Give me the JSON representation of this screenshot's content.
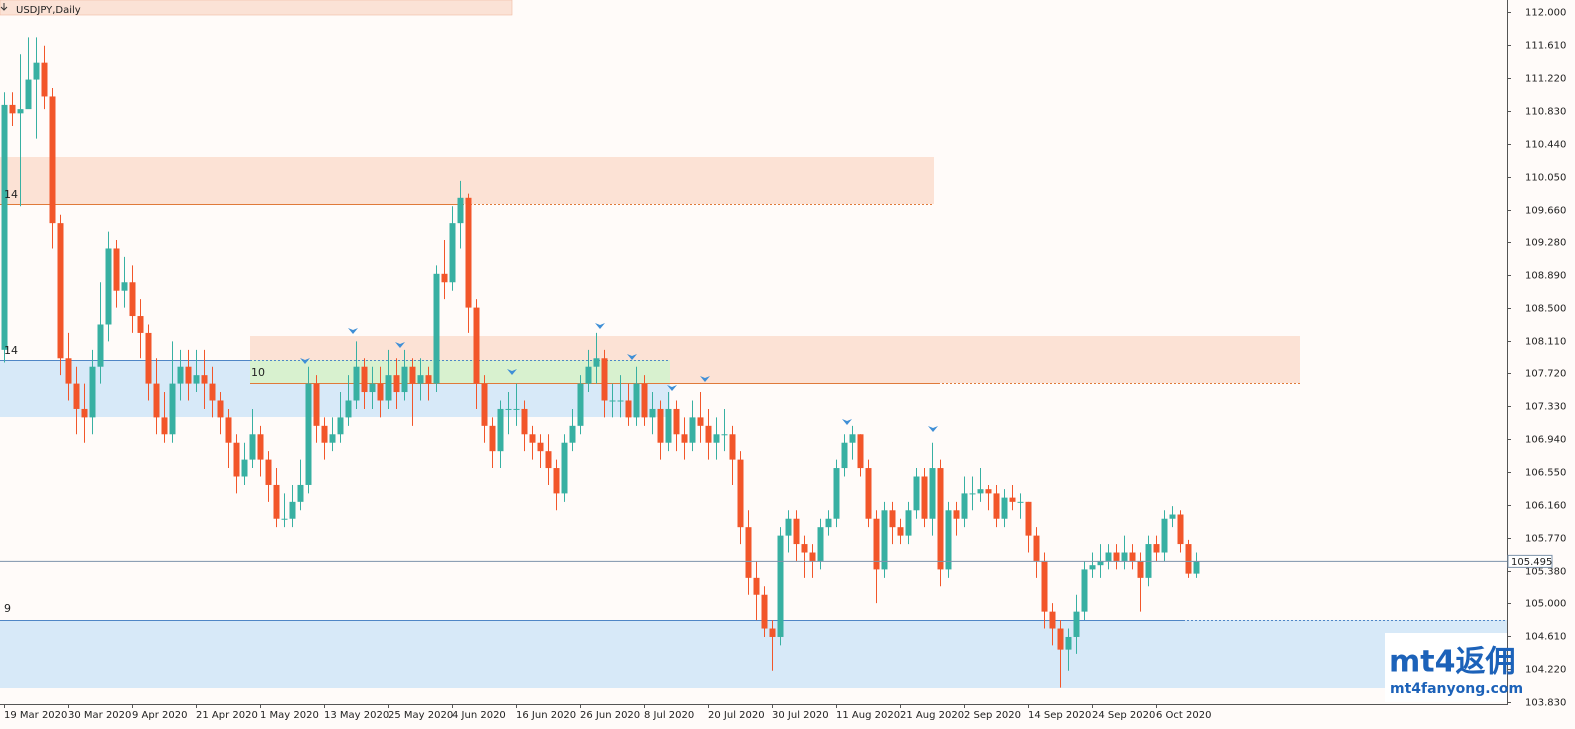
{
  "chart_data": {
    "type": "candlestick",
    "title": "USDJPY,Daily",
    "categories": [
      "19 Mar 2020",
      null,
      null,
      null,
      null,
      null,
      null,
      null,
      "30 Mar 2020",
      null,
      null,
      null,
      null,
      null,
      null,
      null,
      "9 Apr 2020",
      null,
      null,
      null,
      null,
      null,
      null,
      null,
      "21 Apr 2020",
      null,
      null,
      null,
      null,
      null,
      null,
      null,
      "1 May 2020",
      null,
      null,
      null,
      null,
      null,
      null,
      null,
      "13 May 2020",
      null,
      null,
      null,
      null,
      null,
      null,
      null,
      "25 May 2020",
      null,
      null,
      null,
      null,
      null,
      null,
      null,
      "4 Jun 2020",
      null,
      null,
      null,
      null,
      null,
      null,
      null,
      "16 Jun 2020",
      null,
      null,
      null,
      null,
      null,
      null,
      null,
      "26 Jun 2020",
      null,
      null,
      null,
      null,
      null,
      null,
      null,
      "8 Jul 2020",
      null,
      null,
      null,
      null,
      null,
      null,
      null,
      "20 Jul 2020",
      null,
      null,
      null,
      null,
      null,
      null,
      null,
      "30 Jul 2020",
      null,
      null,
      null,
      null,
      null,
      null,
      null,
      "11 Aug 2020",
      null,
      null,
      null,
      null,
      null,
      null,
      null,
      "21 Aug 2020",
      null,
      null,
      null,
      null,
      null,
      null,
      null,
      "2 Sep 2020",
      null,
      null,
      null,
      null,
      null,
      null,
      null,
      "14 Sep 2020",
      null,
      null,
      null,
      null,
      null,
      null,
      null,
      "24 Sep 2020",
      null,
      null,
      null,
      null,
      null,
      null,
      null,
      "6 Oct 2020",
      null,
      null,
      null,
      null,
      null
    ],
    "open": [
      108.0,
      110.9,
      110.8,
      110.85,
      111.2,
      111.4,
      111.0,
      109.5,
      107.9,
      107.6,
      107.3,
      107.2,
      107.8,
      108.3,
      109.2,
      108.7,
      108.8,
      108.4,
      108.2,
      107.6,
      107.2,
      107.0,
      107.6,
      107.8,
      107.6,
      107.7,
      107.6,
      107.4,
      107.2,
      106.9,
      106.5,
      106.7,
      107.0,
      106.7,
      106.4,
      106.0,
      106.0,
      106.2,
      106.4,
      107.6,
      107.1,
      106.9,
      107.0,
      107.2,
      107.4,
      107.8,
      107.5,
      107.6,
      107.4,
      107.7,
      107.5,
      107.8,
      107.6,
      107.7,
      107.6,
      108.9,
      108.8,
      109.5,
      109.8,
      108.5,
      107.6,
      107.1,
      106.8,
      107.3,
      107.3,
      107.3,
      107.0,
      106.9,
      106.8,
      106.6,
      106.3,
      106.9,
      107.1,
      107.6,
      107.8,
      107.9,
      107.4,
      107.4,
      107.4,
      107.2,
      107.6,
      107.2,
      107.3,
      106.9,
      107.3,
      107.0,
      106.9,
      107.2,
      107.1,
      106.9,
      107.0,
      107.0,
      106.7,
      105.9,
      105.3,
      105.1,
      104.7,
      104.6,
      105.8,
      106.0,
      105.7,
      105.6,
      105.5,
      105.9,
      106.0,
      106.6,
      106.9,
      107.0,
      106.6,
      106.0,
      105.4,
      106.1,
      105.9,
      105.8,
      106.1,
      106.5,
      106.0,
      106.6,
      105.4,
      106.1,
      106.0,
      106.3,
      106.3,
      106.35,
      106.3,
      106.0,
      106.25,
      106.2,
      106.2,
      105.8,
      105.5,
      104.9,
      104.7,
      104.45,
      104.6,
      104.9,
      105.4,
      105.45,
      105.5,
      105.6,
      105.5,
      105.6,
      105.5,
      105.3,
      105.7,
      105.6,
      106.0,
      106.05,
      105.7,
      105.35
    ],
    "high": [
      111.05,
      111.05,
      111.5,
      111.7,
      111.7,
      111.6,
      111.1,
      109.6,
      108.2,
      107.8,
      107.6,
      108.0,
      108.8,
      109.4,
      109.3,
      109.1,
      109.0,
      108.6,
      108.3,
      107.9,
      107.5,
      108.1,
      108.0,
      108.0,
      108.0,
      108.0,
      107.8,
      107.5,
      107.3,
      107.0,
      106.9,
      107.3,
      107.1,
      106.8,
      106.6,
      106.3,
      106.4,
      106.7,
      107.8,
      107.7,
      107.2,
      107.2,
      107.5,
      107.7,
      108.1,
      107.9,
      107.8,
      107.8,
      108.0,
      107.9,
      108.0,
      107.9,
      107.9,
      107.8,
      109.0,
      109.3,
      109.7,
      110.0,
      109.85,
      108.6,
      107.7,
      107.2,
      107.4,
      107.5,
      107.6,
      107.4,
      107.1,
      107.0,
      107.0,
      106.7,
      107.0,
      107.3,
      107.7,
      108.0,
      108.2,
      108.0,
      107.6,
      107.7,
      107.6,
      107.8,
      107.7,
      107.5,
      107.4,
      107.5,
      107.4,
      107.2,
      107.4,
      107.5,
      107.3,
      107.2,
      107.3,
      107.1,
      106.8,
      106.1,
      105.5,
      105.2,
      104.8,
      105.9,
      106.1,
      106.1,
      105.8,
      105.7,
      106.0,
      106.1,
      106.7,
      107.0,
      107.1,
      107.0,
      106.7,
      106.1,
      106.2,
      106.2,
      106.0,
      106.2,
      106.6,
      106.6,
      106.9,
      106.7,
      106.2,
      106.2,
      106.5,
      106.5,
      106.6,
      106.4,
      106.4,
      106.35,
      106.4,
      106.3,
      106.2,
      105.9,
      105.6,
      105.0,
      104.8,
      104.7,
      105.1,
      105.5,
      105.6,
      105.7,
      105.7,
      105.7,
      105.8,
      105.7,
      105.6,
      105.8,
      105.8,
      106.1,
      106.15,
      106.1,
      105.75,
      105.6
    ],
    "low": [
      107.85,
      110.65,
      109.7,
      110.9,
      110.5,
      110.85,
      109.2,
      107.7,
      107.4,
      107.0,
      106.9,
      107.0,
      107.6,
      108.1,
      108.5,
      108.5,
      108.2,
      107.9,
      107.4,
      107.0,
      106.9,
      106.9,
      107.4,
      107.4,
      107.5,
      107.3,
      107.2,
      107.0,
      106.6,
      106.3,
      106.4,
      106.6,
      106.5,
      106.2,
      105.9,
      105.9,
      105.9,
      106.1,
      106.3,
      106.9,
      106.7,
      106.8,
      106.9,
      107.1,
      107.3,
      107.3,
      107.3,
      107.2,
      107.3,
      107.3,
      107.4,
      107.1,
      107.4,
      107.4,
      107.5,
      108.6,
      108.7,
      109.2,
      108.2,
      107.3,
      106.9,
      106.6,
      106.6,
      107.0,
      107.1,
      106.8,
      106.7,
      106.6,
      106.4,
      106.1,
      106.2,
      106.8,
      107.0,
      107.5,
      107.6,
      107.2,
      107.2,
      107.2,
      107.1,
      107.1,
      107.1,
      107.0,
      106.7,
      106.8,
      106.8,
      106.7,
      106.8,
      106.9,
      106.7,
      106.7,
      106.8,
      106.4,
      105.7,
      105.1,
      104.8,
      104.6,
      104.2,
      104.5,
      105.6,
      105.5,
      105.3,
      105.3,
      105.4,
      105.8,
      105.9,
      106.5,
      106.7,
      106.5,
      105.9,
      105.0,
      105.3,
      105.7,
      105.7,
      105.7,
      106.0,
      105.9,
      105.8,
      105.2,
      105.3,
      105.8,
      105.9,
      106.1,
      106.2,
      106.1,
      105.9,
      105.9,
      106.1,
      106.0,
      105.6,
      105.3,
      104.7,
      104.5,
      104.0,
      104.2,
      104.4,
      104.8,
      105.3,
      105.3,
      105.4,
      105.4,
      105.4,
      105.4,
      104.9,
      105.2,
      105.5,
      105.5,
      105.9,
      105.6,
      105.3,
      105.3
    ],
    "close": [
      110.9,
      110.8,
      110.85,
      111.2,
      111.4,
      111.0,
      109.5,
      107.9,
      107.6,
      107.3,
      107.2,
      107.8,
      108.3,
      109.2,
      108.7,
      108.8,
      108.4,
      108.2,
      107.6,
      107.2,
      107.0,
      107.6,
      107.8,
      107.6,
      107.7,
      107.6,
      107.4,
      107.2,
      106.9,
      106.5,
      106.7,
      107.0,
      106.7,
      106.4,
      106.0,
      106.0,
      106.2,
      106.4,
      107.6,
      107.1,
      106.9,
      107.0,
      107.2,
      107.4,
      107.8,
      107.5,
      107.6,
      107.4,
      107.7,
      107.5,
      107.8,
      107.6,
      107.7,
      107.6,
      108.9,
      108.8,
      109.5,
      109.8,
      108.5,
      107.6,
      107.1,
      106.8,
      107.3,
      107.3,
      107.3,
      107.0,
      106.9,
      106.8,
      106.6,
      106.3,
      106.9,
      107.1,
      107.6,
      107.8,
      107.9,
      107.4,
      107.4,
      107.4,
      107.2,
      107.6,
      107.2,
      107.3,
      106.9,
      107.3,
      107.0,
      106.9,
      107.2,
      107.1,
      106.9,
      107.0,
      107.0,
      106.7,
      105.9,
      105.3,
      105.1,
      104.7,
      104.6,
      105.8,
      106.0,
      105.7,
      105.6,
      105.5,
      105.9,
      106.0,
      106.6,
      106.9,
      107.0,
      106.6,
      106.0,
      105.4,
      106.1,
      105.9,
      105.8,
      106.1,
      106.5,
      106.0,
      106.6,
      105.4,
      106.1,
      106.0,
      106.3,
      106.3,
      106.35,
      106.3,
      106.0,
      106.25,
      106.2,
      106.2,
      105.8,
      105.5,
      104.9,
      104.7,
      104.45,
      104.6,
      104.9,
      105.4,
      105.45,
      105.5,
      105.6,
      105.5,
      105.6,
      105.5,
      105.3,
      105.7,
      105.6,
      106.0,
      106.05,
      105.7,
      105.35,
      105.495
    ],
    "up_color": "#38b0a2",
    "down_color": "#f2562a",
    "current_price": 105.495,
    "ylim": [
      103.83,
      112.0
    ],
    "yticks": [
      {
        "value": 112.0,
        "label": "112.000"
      },
      {
        "value": 111.61,
        "label": "111.610"
      },
      {
        "value": 111.22,
        "label": "111.220"
      },
      {
        "value": 110.83,
        "label": "110.830"
      },
      {
        "value": 110.44,
        "label": "110.440"
      },
      {
        "value": 110.05,
        "label": "110.050"
      },
      {
        "value": 109.66,
        "label": "109.660"
      },
      {
        "value": 109.28,
        "label": "109.280"
      },
      {
        "value": 108.89,
        "label": "108.890"
      },
      {
        "value": 108.5,
        "label": "108.500"
      },
      {
        "value": 108.11,
        "label": "108.110"
      },
      {
        "value": 107.72,
        "label": "107.720"
      },
      {
        "value": 107.33,
        "label": "107.330"
      },
      {
        "value": 106.94,
        "label": "106.940"
      },
      {
        "value": 106.55,
        "label": "106.550"
      },
      {
        "value": 106.16,
        "label": "106.160"
      },
      {
        "value": 105.77,
        "label": "105.770"
      },
      {
        "value": 105.38,
        "label": "105.380"
      },
      {
        "value": 105.0,
        "label": "105.000"
      },
      {
        "value": 104.61,
        "label": "104.610"
      },
      {
        "value": 104.22,
        "label": "104.220"
      },
      {
        "value": 103.83,
        "label": "103.830"
      }
    ],
    "annotations": [
      "14",
      "14",
      "10",
      "9"
    ],
    "watermark": [
      "mt4返佣",
      "mt4fanyong.com"
    ]
  }
}
